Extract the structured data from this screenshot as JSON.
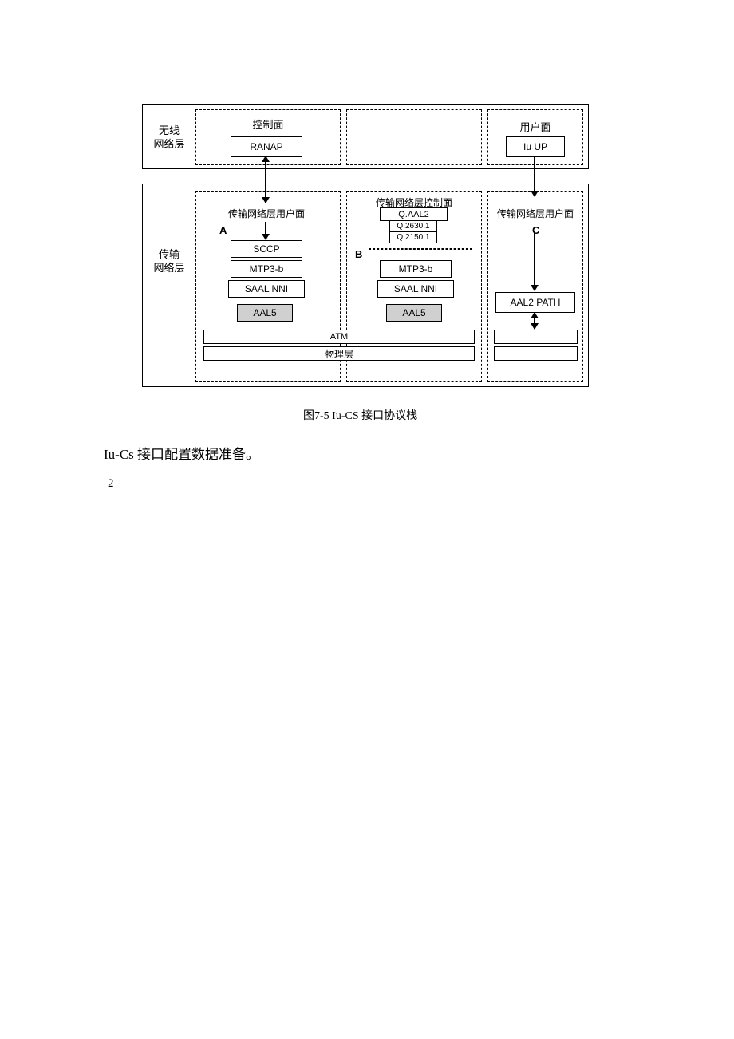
{
  "diagram": {
    "row1_label": "无线\n网络层",
    "row2_label": "传输\n网络层",
    "control_plane": "控制面",
    "user_plane": "用户面",
    "ranap": "RANAP",
    "iuup": "Iu UP",
    "colA_title": "传输网络层用户面",
    "colB_title": "传输网络层控制面",
    "colC_title": "传输网络层用户面",
    "letterA": "A",
    "letterB": "B",
    "letterC": "C",
    "sccp": "SCCP",
    "mtp3b": "MTP3-b",
    "saalnni": "SAAL NNI",
    "aal5": "AAL5",
    "qaal2": "Q.AAL2",
    "q26301": "Q.2630.1",
    "q21501": "Q.2150.1",
    "aal2path": "AAL2 PATH",
    "atm": "ATM",
    "phys": "物理层"
  },
  "caption": "图7-5  Iu-CS 接口协议栈",
  "body_text": "Iu-Cs 接口配置数据准备。",
  "page_num": "2",
  "colors": {
    "border": "#000000",
    "background": "#ffffff",
    "shaded": "#d0d0d0"
  }
}
